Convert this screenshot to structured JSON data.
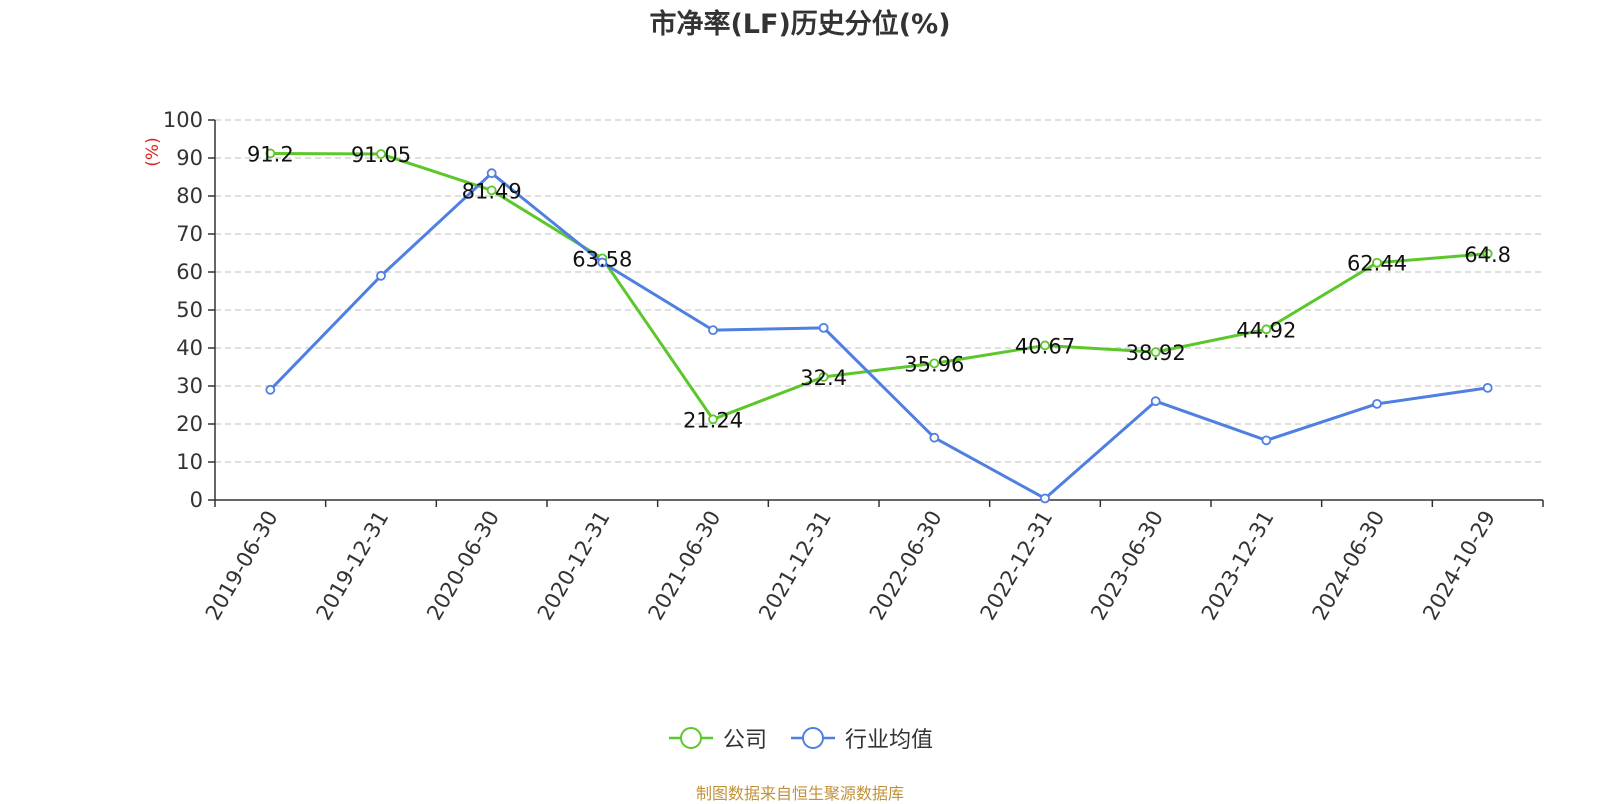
{
  "chart_data": {
    "type": "line",
    "title": "市净率(LF)历史分位(%)",
    "ylabel": "(%)",
    "ylim": [
      0,
      100
    ],
    "yticks": [
      0,
      10,
      20,
      30,
      40,
      50,
      60,
      70,
      80,
      90,
      100
    ],
    "categories": [
      "2019-06-30",
      "2019-12-31",
      "2020-06-30",
      "2020-12-31",
      "2021-06-30",
      "2021-12-31",
      "2022-06-30",
      "2022-12-31",
      "2023-06-30",
      "2023-12-31",
      "2024-06-30",
      "2024-10-29"
    ],
    "series": [
      {
        "name": "公司",
        "color": "#5cc72a",
        "values": [
          91.2,
          91.05,
          81.49,
          63.58,
          21.24,
          32.4,
          35.96,
          40.67,
          38.92,
          44.92,
          62.44,
          64.8
        ],
        "labels": [
          "91.2",
          "91.05",
          "81.49",
          "63.58",
          "21.24",
          "32.4",
          "35.96",
          "40.67",
          "38.92",
          "44.92",
          "62.44",
          "64.8"
        ]
      },
      {
        "name": "行业均值",
        "color": "#4f7fe0",
        "values": [
          29,
          59,
          86,
          62.5,
          44.7,
          45.3,
          16.4,
          0.4,
          26,
          15.7,
          25.3,
          29.5
        ]
      }
    ],
    "grid": true,
    "legend_position": "bottom"
  },
  "source_note": "制图数据来自恒生聚源数据库"
}
